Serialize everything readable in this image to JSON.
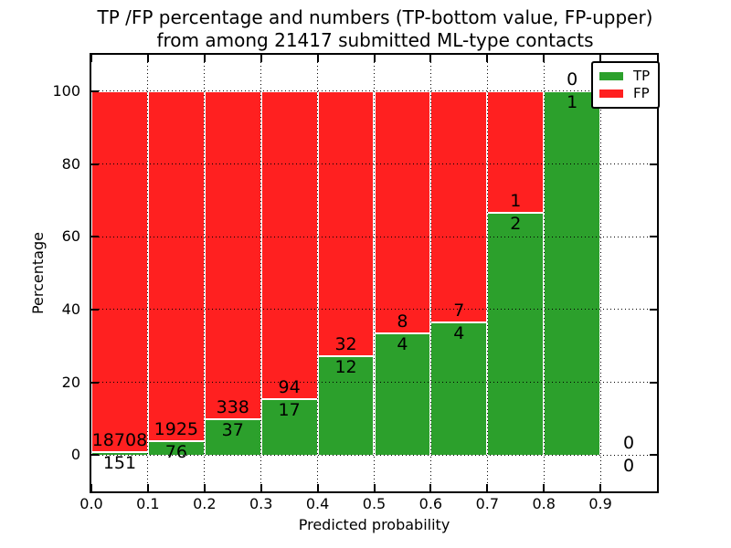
{
  "figure": {
    "title_line1": "TP /FP percentage and numbers (TP-bottom value, FP-upper)",
    "title_line2": "from among 21417 submitted ML-type contacts"
  },
  "colors": {
    "tp": "#2CA02C",
    "fp": "#FF2020",
    "grid": "#000000",
    "background": "#FFFFFF",
    "text": "#000000"
  },
  "chart_data": {
    "type": "bar",
    "stacked": true,
    "normalized_to_percent": true,
    "title": "TP /FP percentage and numbers (TP-bottom value, FP-upper)\nfrom among 21417 submitted ML-type contacts",
    "xlabel": "Predicted probability",
    "ylabel": "Percentage",
    "xlim": [
      0.0,
      1.0
    ],
    "ylim": [
      -10,
      110
    ],
    "grid": true,
    "total_contacts": 21417,
    "bin_width": 0.1,
    "x_ticks": [
      0.0,
      0.1,
      0.2,
      0.3,
      0.4,
      0.5,
      0.6,
      0.7,
      0.8,
      0.9
    ],
    "x_tick_labels": [
      "0.0",
      "0.1",
      "0.2",
      "0.3",
      "0.4",
      "0.5",
      "0.6",
      "0.7",
      "0.8",
      "0.9"
    ],
    "y_ticks": [
      0,
      20,
      40,
      60,
      80,
      100
    ],
    "y_tick_labels": [
      "0",
      "20",
      "40",
      "60",
      "80",
      "100"
    ],
    "legend": {
      "position": "upper right",
      "entries": [
        {
          "label": "TP",
          "color": "#2CA02C"
        },
        {
          "label": "FP",
          "color": "#FF2020"
        }
      ]
    },
    "bins": [
      {
        "x_start": 0.0,
        "x_end": 0.1,
        "tp": 151,
        "fp": 18708,
        "tp_pct": 0.8,
        "fp_pct": 99.2
      },
      {
        "x_start": 0.1,
        "x_end": 0.2,
        "tp": 76,
        "fp": 1925,
        "tp_pct": 3.8,
        "fp_pct": 96.2
      },
      {
        "x_start": 0.2,
        "x_end": 0.3,
        "tp": 37,
        "fp": 338,
        "tp_pct": 9.9,
        "fp_pct": 90.1
      },
      {
        "x_start": 0.3,
        "x_end": 0.4,
        "tp": 17,
        "fp": 94,
        "tp_pct": 15.3,
        "fp_pct": 84.7
      },
      {
        "x_start": 0.4,
        "x_end": 0.5,
        "tp": 12,
        "fp": 32,
        "tp_pct": 27.3,
        "fp_pct": 72.7
      },
      {
        "x_start": 0.5,
        "x_end": 0.6,
        "tp": 4,
        "fp": 8,
        "tp_pct": 33.3,
        "fp_pct": 66.7
      },
      {
        "x_start": 0.6,
        "x_end": 0.7,
        "tp": 4,
        "fp": 7,
        "tp_pct": 36.4,
        "fp_pct": 63.6
      },
      {
        "x_start": 0.7,
        "x_end": 0.8,
        "tp": 2,
        "fp": 1,
        "tp_pct": 66.7,
        "fp_pct": 33.3
      },
      {
        "x_start": 0.8,
        "x_end": 0.9,
        "tp": 1,
        "fp": 0,
        "tp_pct": 100.0,
        "fp_pct": 0.0
      },
      {
        "x_start": 0.9,
        "x_end": 1.0,
        "tp": 0,
        "fp": 0,
        "tp_pct": null,
        "fp_pct": null
      }
    ]
  }
}
